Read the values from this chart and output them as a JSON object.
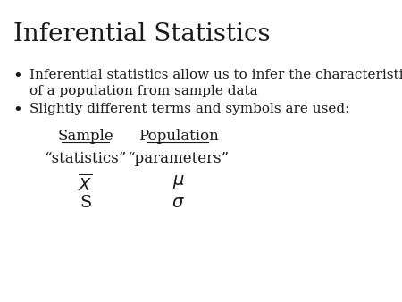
{
  "title": "Inferential Statistics",
  "title_fontsize": 20,
  "title_font": "serif",
  "bg_color": "#ffffff",
  "text_color": "#1a1a1a",
  "bullet1_line1": "Inferential statistics allow us to infer the characteristic(s)",
  "bullet1_line2": "of a population from sample data",
  "bullet2": "Slightly different terms and symbols are used:",
  "col1_header": "Sample",
  "col2_header": "Population",
  "col1_row1": "“statistics”",
  "col2_row1": "“parameters”",
  "col1_row2": "$\\overline{X}$",
  "col2_row2": "$\\mu$",
  "col1_row3": "S",
  "col2_row3": "$\\sigma$",
  "body_fontsize": 11,
  "table_fontsize": 12
}
